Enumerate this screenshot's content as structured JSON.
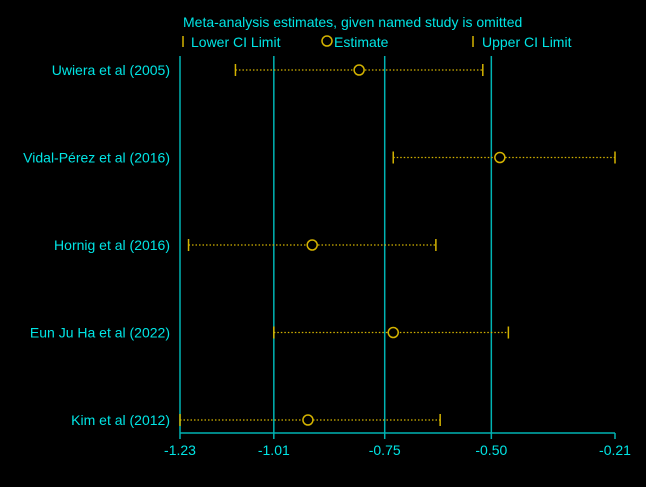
{
  "chart_data": {
    "type": "forest",
    "title": "Meta-analysis estimates, given named study is omitted",
    "legend": {
      "placement": "top",
      "entries": [
        {
          "name": "Lower CI Limit",
          "marker": "tick"
        },
        {
          "name": "Estimate",
          "marker": "circle"
        },
        {
          "name": "Upper CI Limit",
          "marker": "tick"
        }
      ]
    },
    "xlim": [
      -1.23,
      -0.21
    ],
    "x_ticks": [
      "-1.23",
      "-1.01",
      "-0.75",
      "-0.50",
      "-0.21"
    ],
    "reference_lines": [
      -1.23,
      -1.01,
      -0.75,
      -0.5
    ],
    "grid": false,
    "studies": [
      {
        "label": "Uwiera et al (2005)",
        "lower": -1.1,
        "estimate": -0.81,
        "upper": -0.52
      },
      {
        "label": "Vidal-Pérez et al (2016)",
        "lower": -0.73,
        "estimate": -0.48,
        "upper": -0.21
      },
      {
        "label": "Hornig et al (2016)",
        "lower": -1.21,
        "estimate": -0.92,
        "upper": -0.63
      },
      {
        "label": "Eun Ju Ha et al (2022)",
        "lower": -1.01,
        "estimate": -0.73,
        "upper": -0.46
      },
      {
        "label": "Kim et al (2012)",
        "lower": -1.23,
        "estimate": -0.93,
        "upper": -0.62
      }
    ],
    "colors": {
      "background": "#000000",
      "text": "#00e5e5",
      "axis": "#00b3b3",
      "reference_line": "#00b3b3",
      "ci_line": "#d4b300",
      "estimate": "#d4b300"
    }
  }
}
